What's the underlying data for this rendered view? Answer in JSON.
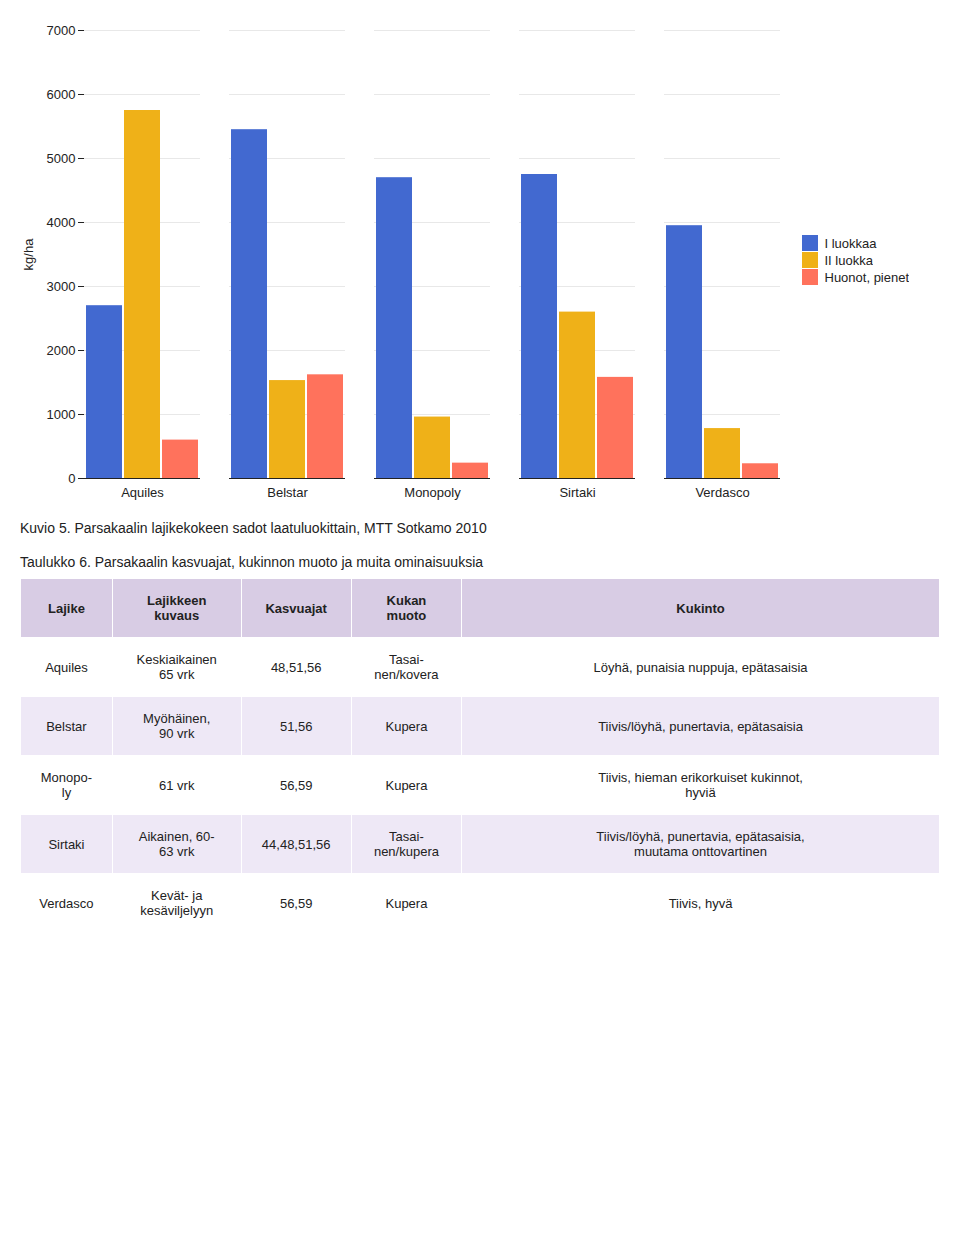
{
  "chart_data": {
    "type": "bar",
    "title": "Kuvio 5. Parsakaalin lajikekokeen sadot laatuluokittain, MTT Sotkamo 2010",
    "categories": [
      "Aquiles",
      "Belstar",
      "Monopoly",
      "Sirtaki",
      "Verdasco"
    ],
    "series": [
      {
        "name": "I luokkaa",
        "values": [
          2700,
          5450,
          4700,
          4750,
          3950
        ]
      },
      {
        "name": "II luokka",
        "values": [
          5750,
          1530,
          960,
          2600,
          780
        ]
      },
      {
        "name": "Huonot, pienet",
        "values": [
          600,
          1620,
          240,
          1580,
          230
        ]
      }
    ],
    "ylabel": "kg/ha",
    "ylim": [
      0,
      7000
    ],
    "yticks": [
      0,
      1000,
      2000,
      3000,
      4000,
      5000,
      6000,
      7000
    ],
    "grid": true,
    "legend": "right"
  },
  "table": {
    "title": "Taulukko 6. Parsakaalin kasvuajat, kukinnon muoto ja muita ominaisuuksia",
    "headers": [
      "Lajike",
      "Lajikkeen\nkuvaus",
      "Kasvuajat",
      "Kukan\nmuoto",
      "Kukinto"
    ],
    "rows": [
      [
        "Aquiles",
        "Keskiaikainen\n65 vrk",
        "48,51,56",
        "Tasai-\nnen/kovera",
        "Löyhä, punaisia nuppuja, epätasaisia"
      ],
      [
        "Belstar",
        "Myöhäinen,\n90 vrk",
        "51,56",
        "Kupera",
        "Tiivis/löyhä, punertavia, epätasaisia"
      ],
      [
        "Monopo-\nly",
        "61 vrk",
        "56,59",
        "Kupera",
        "Tiivis, hieman erikorkuiset kukinnot,\nhyviä"
      ],
      [
        "Sirtaki",
        "Aikainen, 60-\n63 vrk",
        "44,48,51,56",
        "Tasai-\nnen/kupera",
        "Tiivis/löyhä, punertavia, epätasaisia,\nmuutama onttovartinen"
      ],
      [
        "Verdasco",
        "Kevät- ja\nkesäviljelyyn",
        "56,59",
        "Kupera",
        "Tiivis, hyvä"
      ]
    ]
  }
}
